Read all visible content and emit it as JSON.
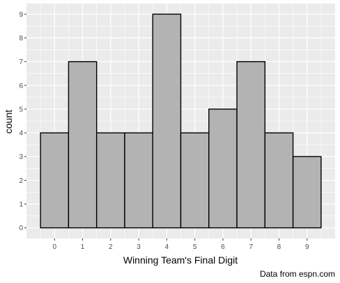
{
  "chart_data": {
    "type": "bar",
    "categories": [
      "0",
      "1",
      "2",
      "3",
      "4",
      "5",
      "6",
      "7",
      "8",
      "9"
    ],
    "values": [
      4,
      7,
      4,
      4,
      9,
      4,
      5,
      7,
      4,
      3
    ],
    "xlabel": "Winning Team's Final Digit",
    "ylabel": "count",
    "caption": "Data from espn.com",
    "ylim": [
      -0.45,
      9.45
    ],
    "yticks": [
      0,
      1,
      2,
      3,
      4,
      5,
      6,
      7,
      8,
      9
    ],
    "ytick_labels": [
      "0",
      "1",
      "2",
      "3",
      "4",
      "5",
      "6",
      "7",
      "8",
      "9"
    ],
    "grid": true,
    "colors": {
      "panel_background": "#ebebeb",
      "bar_fill": "#b3b3b3",
      "bar_stroke": "#000000",
      "grid_line": "#ffffff"
    }
  }
}
